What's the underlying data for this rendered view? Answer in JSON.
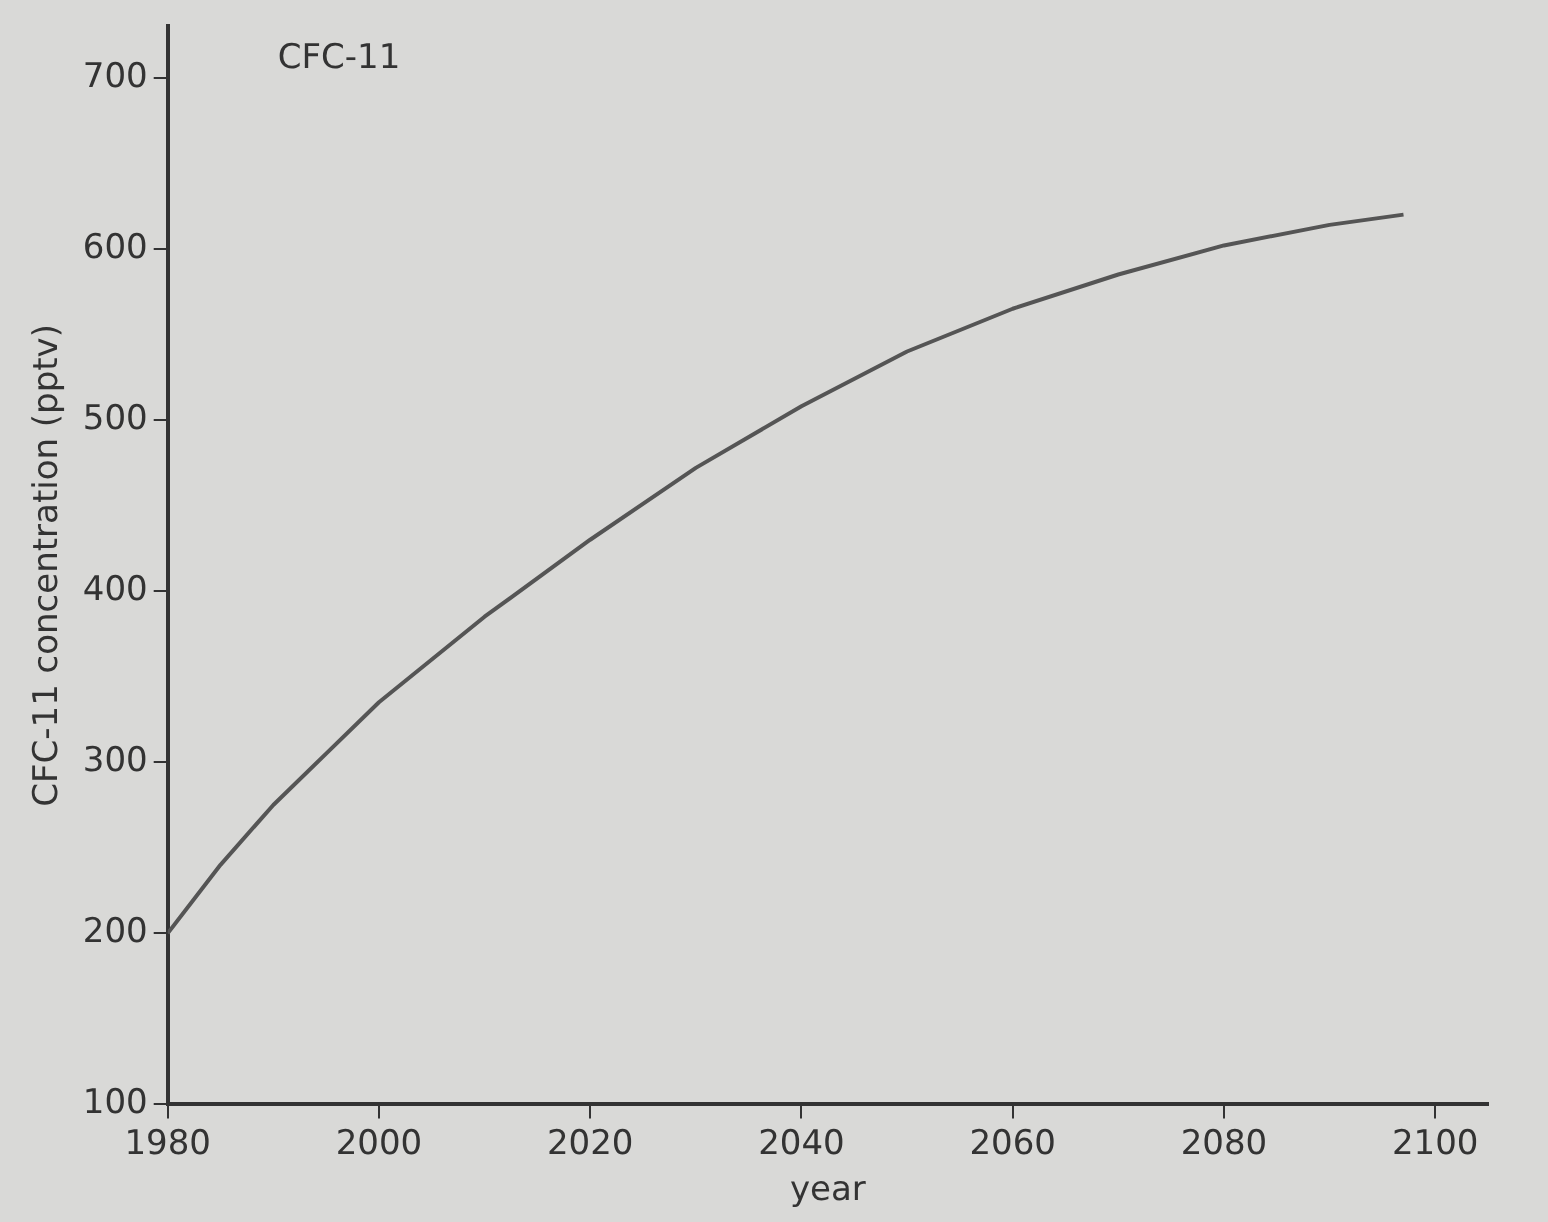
{
  "chart_data": {
    "type": "line",
    "xlabel": "year",
    "ylabel": "CFC-11 concentration (pptv)",
    "annotations": [
      "CFC-11"
    ],
    "x": [
      1980,
      1985,
      1990,
      1995,
      2000,
      2010,
      2020,
      2030,
      2040,
      2050,
      2060,
      2070,
      2080,
      2090,
      2097
    ],
    "series": [
      {
        "color": "#555555",
        "values": [
          200,
          240,
          275,
          305,
          335,
          385,
          430,
          472,
          508,
          540,
          565,
          585,
          602,
          614,
          620
        ]
      }
    ],
    "xlim": [
      1980,
      2105
    ],
    "ylim": [
      100,
      730
    ],
    "xticks": [
      1980,
      2000,
      2020,
      2040,
      2060,
      2080,
      2100
    ],
    "yticks": [
      100,
      200,
      300,
      400,
      500,
      600,
      700
    ],
    "marker": "none"
  }
}
